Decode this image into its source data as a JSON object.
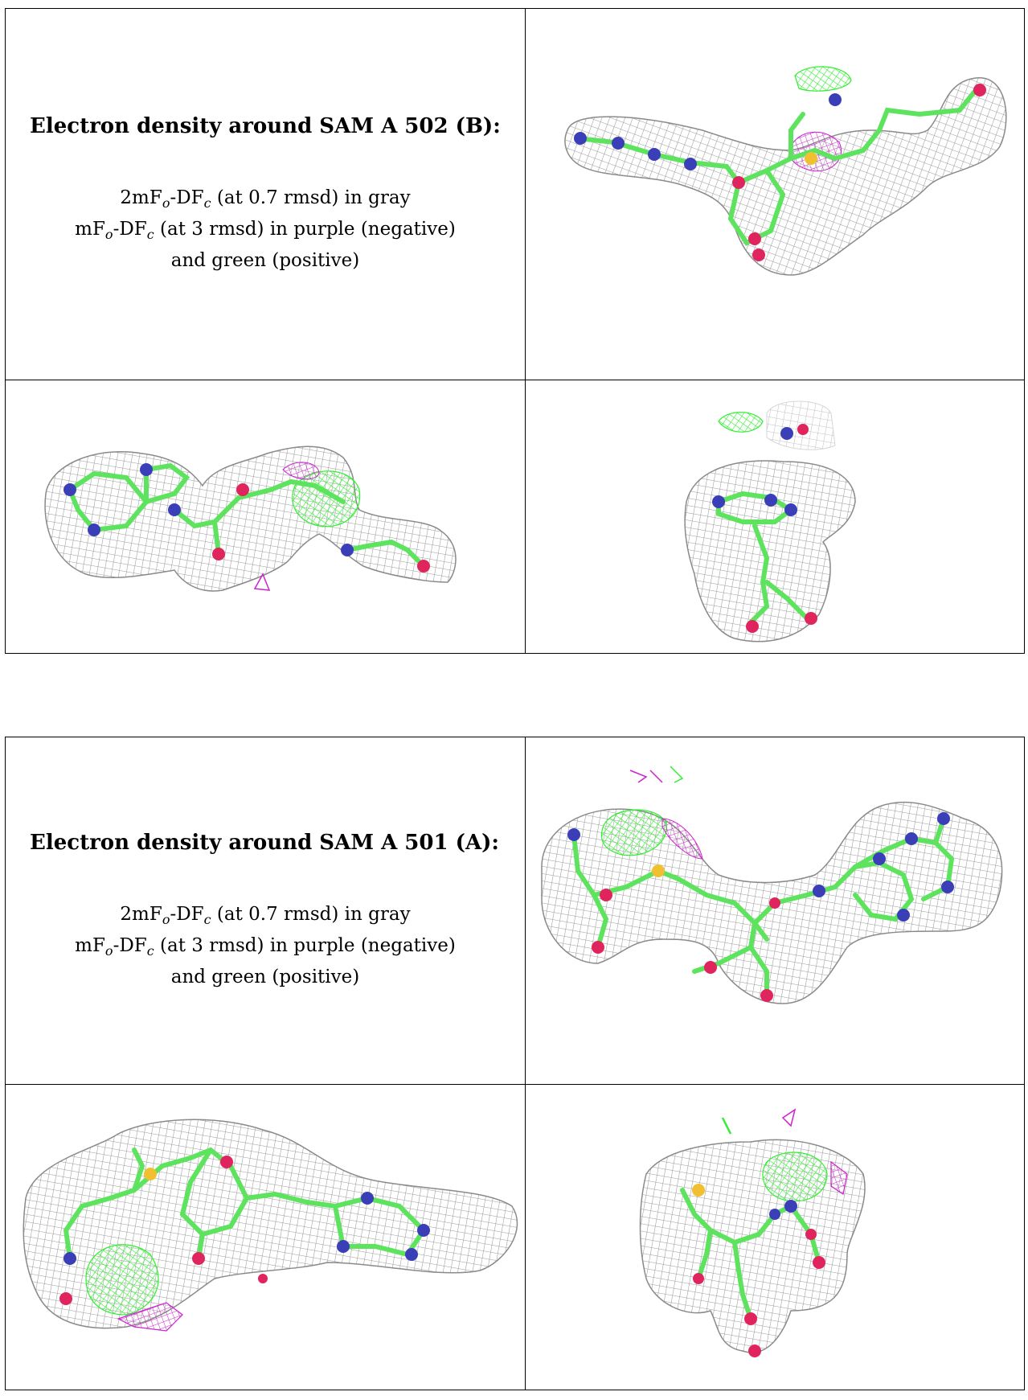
{
  "sections": [
    {
      "title": "Electron density around SAM A 502 (B):",
      "legend": [
        {
          "pre": "2mF",
          "sub1": "o",
          "mid": "-DF",
          "sub2": "c",
          "post": " (at 0.7 rmsd) in gray"
        },
        {
          "pre": "mF",
          "sub1": "o",
          "mid": "-DF",
          "sub2": "c",
          "post": " (at 3 rmsd) in purple (negative)"
        },
        {
          "pre": "and green (positive)",
          "sub1": "",
          "mid": "",
          "sub2": "",
          "post": ""
        }
      ]
    },
    {
      "title": "Electron density around SAM A 501 (A):",
      "legend": [
        {
          "pre": "2mF",
          "sub1": "o",
          "mid": "-DF",
          "sub2": "c",
          "post": " (at 0.7 rmsd) in gray"
        },
        {
          "pre": "mF",
          "sub1": "o",
          "mid": "-DF",
          "sub2": "c",
          "post": " (at 3 rmsd) in purple (negative)"
        },
        {
          "pre": "and green (positive)",
          "sub1": "",
          "mid": "",
          "sub2": "",
          "post": ""
        }
      ]
    }
  ],
  "colors": {
    "mesh_gray": "#9a9a9a",
    "bond_green": "#5ee35e",
    "nitrogen_blue": "#3a3fb8",
    "oxygen_red": "#e0245e",
    "sulfur_yellow": "#f0c030",
    "negative_purple": "#cc22cc",
    "positive_green": "#33ee33"
  }
}
